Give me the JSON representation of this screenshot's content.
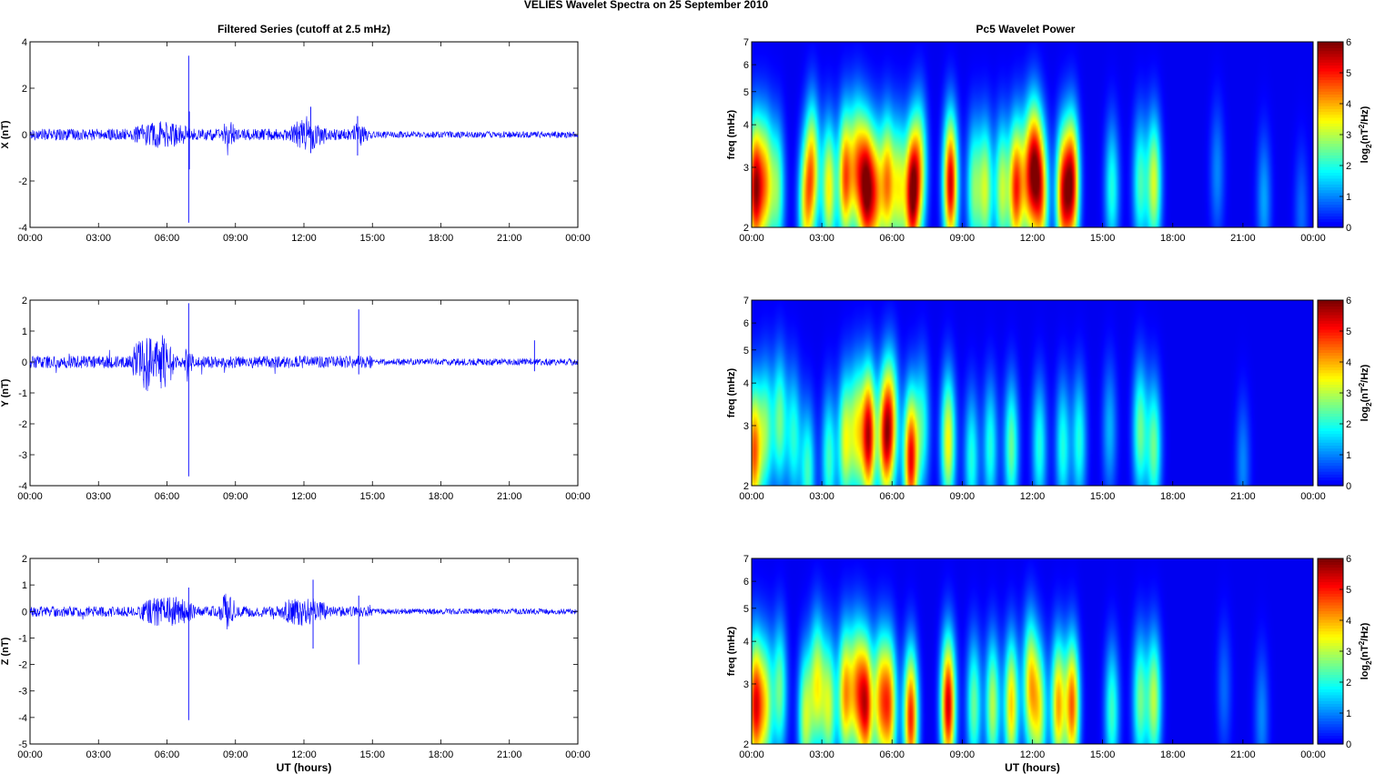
{
  "title": "VELIES Wavelet Spectra on 25 September 2010",
  "left_title": "Filtered Series (cutoff at 2.5 mHz)",
  "right_title": "Pc5 Wavelet Power",
  "time_ticks": [
    "00:00",
    "03:00",
    "06:00",
    "09:00",
    "12:00",
    "15:00",
    "18:00",
    "21:00",
    "00:00"
  ],
  "xlabel": "UT (hours)",
  "freq_label": "freq (mHz)",
  "freq_ticks": [
    "2",
    "3",
    "4",
    "5",
    "6",
    "7"
  ],
  "colorbar": {
    "ticks": [
      "0",
      "1",
      "2",
      "3",
      "4",
      "5",
      "6"
    ],
    "label": "log2(nT2/Hz)"
  },
  "colors": {
    "trace": "#0000ff",
    "background_power": "#00008f"
  },
  "chart_data": [
    {
      "type": "line",
      "component": "X",
      "ylabel": "X (nT)",
      "xlabel": "",
      "x_range_hours": [
        0,
        24
      ],
      "ylim": [
        -4,
        4
      ],
      "yticks": [
        "-4",
        "-2",
        "0",
        "2",
        "4"
      ],
      "baseline_noise_nT": 0.25,
      "spikes": [
        {
          "t": 6.95,
          "min": -3.8,
          "max": 3.4
        },
        {
          "t": 6.98,
          "min": -1.5,
          "max": 1.0
        },
        {
          "t": 12.3,
          "min": -0.8,
          "max": 1.2
        },
        {
          "t": 14.35,
          "min": -0.9,
          "max": 0.8
        }
      ],
      "active_intervals": [
        {
          "start": 4.5,
          "end": 7.0,
          "amp": 0.6
        },
        {
          "start": 8.4,
          "end": 9.0,
          "amp": 0.6
        },
        {
          "start": 11.3,
          "end": 13.0,
          "amp": 0.7
        },
        {
          "start": 14.0,
          "end": 14.8,
          "amp": 0.5
        }
      ]
    },
    {
      "type": "line",
      "component": "Y",
      "ylabel": "Y (nT)",
      "xlabel": "",
      "x_range_hours": [
        0,
        24
      ],
      "ylim": [
        -4,
        2
      ],
      "yticks": [
        "-4",
        "-3",
        "-2",
        "-1",
        "0",
        "1",
        "2"
      ],
      "baseline_noise_nT": 0.2,
      "spikes": [
        {
          "t": 6.95,
          "min": -3.7,
          "max": 1.9
        },
        {
          "t": 14.4,
          "min": -0.4,
          "max": 1.7
        },
        {
          "t": 22.1,
          "min": -0.3,
          "max": 0.7
        }
      ],
      "active_intervals": [
        {
          "start": 4.5,
          "end": 6.3,
          "amp": 1.0
        },
        {
          "start": 6.8,
          "end": 7.1,
          "amp": 0.7
        }
      ]
    },
    {
      "type": "line",
      "component": "Z",
      "ylabel": "Z (nT)",
      "xlabel": "UT (hours)",
      "x_range_hours": [
        0,
        24
      ],
      "ylim": [
        -5,
        2
      ],
      "yticks": [
        "-5",
        "-4",
        "-3",
        "-2",
        "-1",
        "0",
        "1",
        "2"
      ],
      "baseline_noise_nT": 0.2,
      "spikes": [
        {
          "t": 6.95,
          "min": -4.1,
          "max": 0.9
        },
        {
          "t": 12.4,
          "min": -1.4,
          "max": 1.2
        },
        {
          "t": 14.4,
          "min": -2.0,
          "max": 0.6
        }
      ],
      "active_intervals": [
        {
          "start": 4.8,
          "end": 7.2,
          "amp": 0.6
        },
        {
          "start": 8.3,
          "end": 9.0,
          "amp": 0.7
        },
        {
          "start": 11.0,
          "end": 13.0,
          "amp": 0.6
        }
      ]
    },
    {
      "type": "heatmap",
      "component": "X",
      "ylabel": "freq (mHz)",
      "xlabel": "",
      "x_range_hours": [
        0,
        24
      ],
      "ylim": [
        2,
        7
      ],
      "yscale": "log",
      "clim": [
        0,
        6
      ],
      "colormap": "jet",
      "blobs": [
        {
          "t": 0.15,
          "f": 2.6,
          "p": 5.5
        },
        {
          "t": 0.6,
          "f": 2.7,
          "p": 3.5
        },
        {
          "t": 1.1,
          "f": 2.6,
          "p": 2.5
        },
        {
          "t": 2.3,
          "f": 2.3,
          "p": 3.0
        },
        {
          "t": 2.6,
          "f": 3.0,
          "p": 3.5
        },
        {
          "t": 3.3,
          "f": 2.6,
          "p": 3.5
        },
        {
          "t": 4.0,
          "f": 2.8,
          "p": 4.5
        },
        {
          "t": 4.5,
          "f": 3.0,
          "p": 3.5
        },
        {
          "t": 4.9,
          "f": 2.6,
          "p": 5.2
        },
        {
          "t": 5.3,
          "f": 2.5,
          "p": 3.5
        },
        {
          "t": 5.8,
          "f": 2.7,
          "p": 4.0
        },
        {
          "t": 6.3,
          "f": 2.6,
          "p": 3.0
        },
        {
          "t": 6.85,
          "f": 2.5,
          "p": 5.5
        },
        {
          "t": 7.2,
          "f": 3.0,
          "p": 3.0
        },
        {
          "t": 8.5,
          "f": 2.7,
          "p": 5.5
        },
        {
          "t": 9.5,
          "f": 2.6,
          "p": 2.5
        },
        {
          "t": 10.0,
          "f": 2.6,
          "p": 3.0
        },
        {
          "t": 10.7,
          "f": 2.6,
          "p": 3.0
        },
        {
          "t": 11.3,
          "f": 2.6,
          "p": 4.8
        },
        {
          "t": 11.8,
          "f": 2.8,
          "p": 3.0
        },
        {
          "t": 12.1,
          "f": 3.0,
          "p": 4.0
        },
        {
          "t": 12.4,
          "f": 2.5,
          "p": 3.5
        },
        {
          "t": 13.3,
          "f": 2.5,
          "p": 4.5
        },
        {
          "t": 13.7,
          "f": 2.7,
          "p": 5.0
        },
        {
          "t": 15.4,
          "f": 2.6,
          "p": 2.0
        },
        {
          "t": 16.6,
          "f": 2.7,
          "p": 2.2
        },
        {
          "t": 17.2,
          "f": 2.7,
          "p": 3.2
        },
        {
          "t": 19.9,
          "f": 2.9,
          "p": 1.0
        },
        {
          "t": 21.9,
          "f": 2.4,
          "p": 1.2
        },
        {
          "t": 23.5,
          "f": 2.2,
          "p": 0.8
        }
      ]
    },
    {
      "type": "heatmap",
      "component": "Y",
      "ylabel": "freq (mHz)",
      "xlabel": "",
      "x_range_hours": [
        0,
        24
      ],
      "ylim": [
        2,
        7
      ],
      "yscale": "log",
      "clim": [
        0,
        6
      ],
      "colormap": "jet",
      "blobs": [
        {
          "t": 0.1,
          "f": 2.5,
          "p": 4.5
        },
        {
          "t": 0.6,
          "f": 2.9,
          "p": 2.5
        },
        {
          "t": 1.2,
          "f": 3.1,
          "p": 2.5
        },
        {
          "t": 1.8,
          "f": 2.8,
          "p": 2.0
        },
        {
          "t": 2.4,
          "f": 2.2,
          "p": 2.2
        },
        {
          "t": 3.3,
          "f": 2.4,
          "p": 2.2
        },
        {
          "t": 4.0,
          "f": 2.7,
          "p": 3.2
        },
        {
          "t": 4.5,
          "f": 2.9,
          "p": 3.0
        },
        {
          "t": 5.0,
          "f": 2.8,
          "p": 5.5
        },
        {
          "t": 5.7,
          "f": 2.8,
          "p": 4.5
        },
        {
          "t": 6.0,
          "f": 3.1,
          "p": 3.0
        },
        {
          "t": 6.8,
          "f": 2.4,
          "p": 5.2
        },
        {
          "t": 7.3,
          "f": 3.0,
          "p": 2.0
        },
        {
          "t": 8.4,
          "f": 2.7,
          "p": 3.5
        },
        {
          "t": 9.4,
          "f": 2.4,
          "p": 2.0
        },
        {
          "t": 10.2,
          "f": 2.6,
          "p": 2.0
        },
        {
          "t": 11.1,
          "f": 2.6,
          "p": 2.5
        },
        {
          "t": 12.3,
          "f": 2.6,
          "p": 2.0
        },
        {
          "t": 13.3,
          "f": 2.6,
          "p": 2.0
        },
        {
          "t": 14.0,
          "f": 2.7,
          "p": 2.0
        },
        {
          "t": 15.3,
          "f": 2.9,
          "p": 1.3
        },
        {
          "t": 16.6,
          "f": 2.9,
          "p": 2.5
        },
        {
          "t": 17.2,
          "f": 2.6,
          "p": 2.5
        },
        {
          "t": 21.0,
          "f": 2.3,
          "p": 1.0
        }
      ]
    },
    {
      "type": "heatmap",
      "component": "Z",
      "ylabel": "freq (mHz)",
      "xlabel": "UT (hours)",
      "x_range_hours": [
        0,
        24
      ],
      "ylim": [
        2,
        7
      ],
      "yscale": "log",
      "clim": [
        0,
        6
      ],
      "colormap": "jet",
      "blobs": [
        {
          "t": 0.15,
          "f": 2.6,
          "p": 5.0
        },
        {
          "t": 0.6,
          "f": 2.6,
          "p": 3.0
        },
        {
          "t": 1.2,
          "f": 2.9,
          "p": 2.5
        },
        {
          "t": 2.3,
          "f": 2.4,
          "p": 3.0
        },
        {
          "t": 2.8,
          "f": 3.0,
          "p": 3.2
        },
        {
          "t": 3.3,
          "f": 2.6,
          "p": 3.0
        },
        {
          "t": 4.0,
          "f": 2.8,
          "p": 4.0
        },
        {
          "t": 4.5,
          "f": 2.9,
          "p": 3.5
        },
        {
          "t": 4.9,
          "f": 2.6,
          "p": 4.8
        },
        {
          "t": 5.5,
          "f": 2.7,
          "p": 3.5
        },
        {
          "t": 5.9,
          "f": 2.6,
          "p": 4.0
        },
        {
          "t": 6.8,
          "f": 2.4,
          "p": 5.0
        },
        {
          "t": 8.4,
          "f": 2.6,
          "p": 5.5
        },
        {
          "t": 9.5,
          "f": 2.6,
          "p": 2.5
        },
        {
          "t": 10.3,
          "f": 2.6,
          "p": 3.0
        },
        {
          "t": 11.1,
          "f": 2.6,
          "p": 3.8
        },
        {
          "t": 11.9,
          "f": 3.0,
          "p": 3.5
        },
        {
          "t": 12.3,
          "f": 2.5,
          "p": 3.0
        },
        {
          "t": 13.1,
          "f": 2.6,
          "p": 4.0
        },
        {
          "t": 13.7,
          "f": 2.6,
          "p": 4.5
        },
        {
          "t": 15.4,
          "f": 2.5,
          "p": 2.2
        },
        {
          "t": 16.6,
          "f": 2.7,
          "p": 2.5
        },
        {
          "t": 17.2,
          "f": 2.7,
          "p": 3.0
        },
        {
          "t": 20.2,
          "f": 2.9,
          "p": 0.8
        },
        {
          "t": 21.8,
          "f": 2.4,
          "p": 1.0
        }
      ]
    }
  ]
}
